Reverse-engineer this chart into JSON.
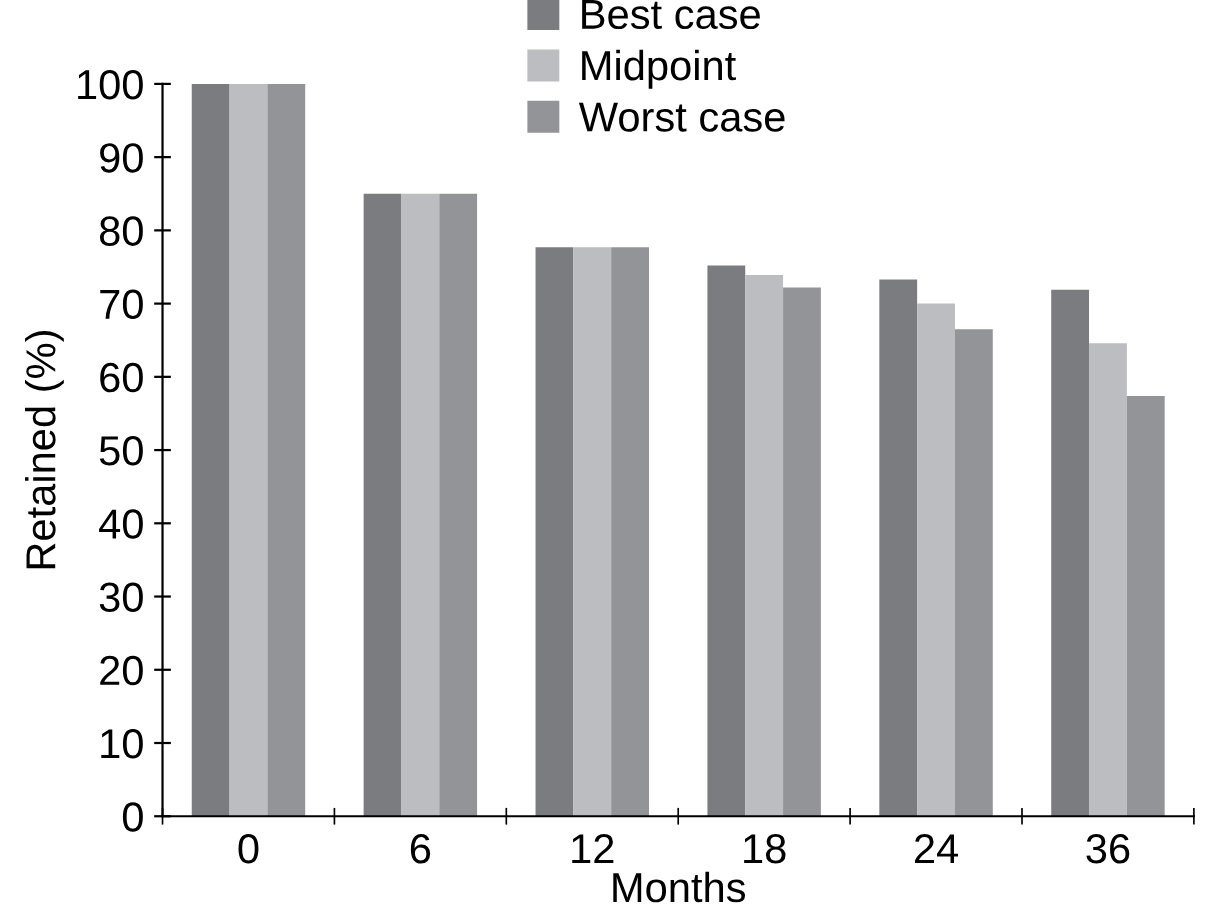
{
  "chart_data": {
    "type": "bar",
    "xlabel": "Months",
    "ylabel": "Retained (%)",
    "categories": [
      "0",
      "6",
      "12",
      "18",
      "24",
      "36"
    ],
    "series": [
      {
        "name": "Best case",
        "color": "#7b7c80",
        "values": [
          100,
          85,
          77.7,
          75.2,
          73.3,
          71.9
        ]
      },
      {
        "name": "Midpoint",
        "color": "#bcbdc1",
        "values": [
          100,
          85,
          77.7,
          73.9,
          70.0,
          64.6
        ]
      },
      {
        "name": "Worst case",
        "color": "#939498",
        "values": [
          100,
          85,
          77.7,
          72.2,
          66.5,
          57.4
        ]
      }
    ],
    "ylim": [
      0,
      100
    ],
    "yticks": [
      0,
      10,
      20,
      30,
      40,
      50,
      60,
      70,
      80,
      90,
      100
    ],
    "grid": false,
    "legend": "top"
  }
}
